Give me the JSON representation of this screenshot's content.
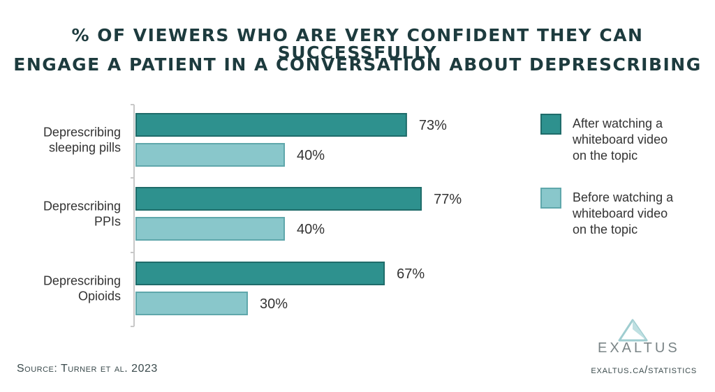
{
  "title_line1": "% of viewers who are very confident they can successfully",
  "title_line2": "engage a patient in a conversation about deprescribing",
  "source": "Source: Turner et al. 2023",
  "url": "exaltus.ca/statistics",
  "logo": {
    "text": "EXALTUS",
    "icon": "mountain-peak-icon"
  },
  "colors": {
    "after": "#2e918e",
    "after_border": "#1f6c6a",
    "before": "#89c7cb",
    "before_border": "#5fa7ab",
    "axis": "#c8c8c8",
    "text": "#333333"
  },
  "chart_data": {
    "type": "bar",
    "orientation": "horizontal",
    "categories": [
      [
        "Deprescribing",
        "sleeping pills"
      ],
      [
        "Deprescribing",
        "PPIs"
      ],
      [
        "Deprescribing",
        "Opioids"
      ]
    ],
    "series": [
      {
        "name": "After watching a whiteboard video on the topic",
        "legend_lines": [
          "After watching a",
          "whiteboard video",
          "on the topic"
        ],
        "values": [
          73,
          77,
          67
        ],
        "labels": [
          "73%",
          "77%",
          "67%"
        ]
      },
      {
        "name": "Before watching a whiteboard video on the topic",
        "legend_lines": [
          "Before watching a",
          "whiteboard video",
          "on the topic"
        ],
        "values": [
          40,
          40,
          30
        ],
        "labels": [
          "40%",
          "40%",
          "30%"
        ]
      }
    ],
    "unit": "%",
    "xlim": [
      0,
      100
    ],
    "grid": false,
    "legend_position": "right"
  }
}
